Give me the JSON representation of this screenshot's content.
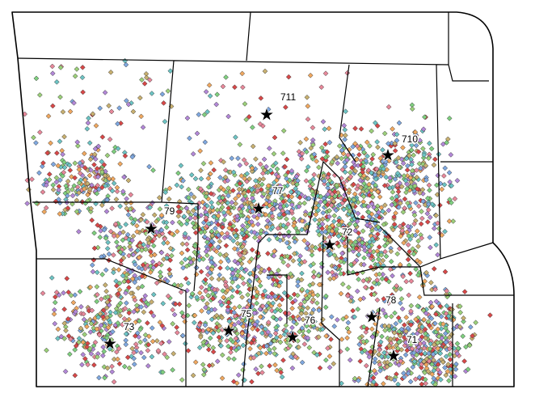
{
  "labels": [
    "711",
    "710",
    "77",
    "79",
    "72",
    "78",
    "73",
    "75",
    "76",
    "71"
  ]
}
